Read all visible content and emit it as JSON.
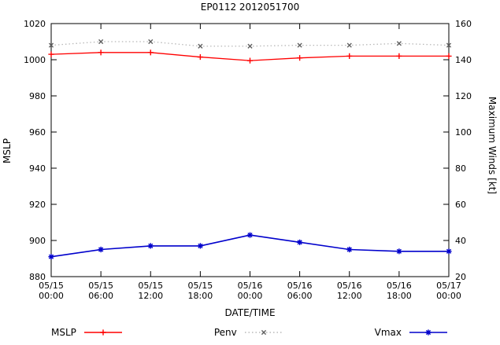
{
  "title": "EP0112 2012051700",
  "chart_data": {
    "type": "line",
    "title": "EP0112 2012051700",
    "xlabel": "DATE/TIME",
    "x_categories": [
      [
        "05/15",
        "00:00"
      ],
      [
        "05/15",
        "06:00"
      ],
      [
        "05/15",
        "12:00"
      ],
      [
        "05/15",
        "18:00"
      ],
      [
        "05/16",
        "00:00"
      ],
      [
        "05/16",
        "06:00"
      ],
      [
        "05/16",
        "12:00"
      ],
      [
        "05/16",
        "18:00"
      ],
      [
        "05/17",
        "00:00"
      ]
    ],
    "left_axis": {
      "label": "MSLP",
      "min": 880,
      "max": 1020,
      "step": 20
    },
    "right_axis": {
      "label": "Maximum Winds [kt]",
      "min": 20,
      "max": 160,
      "step": 20
    },
    "grid": false,
    "legend_position": "bottom",
    "series": [
      {
        "name": "MSLP",
        "axis": "left",
        "line_color": "#ff0000",
        "marker_color": "#ff0000",
        "marker": "plus",
        "line_style": "solid",
        "values": [
          1003,
          1004,
          1004,
          1001.5,
          999.5,
          1001,
          1002,
          1002,
          1002
        ]
      },
      {
        "name": "Penv",
        "axis": "left",
        "line_color": "#b8b8b8",
        "marker_color": "#606060",
        "marker": "cross",
        "line_style": "dotted",
        "values": [
          1008,
          1010,
          1010,
          1007.5,
          1007.5,
          1008,
          1008,
          1009,
          1008
        ]
      },
      {
        "name": "Vmax",
        "axis": "right",
        "line_color": "#0000cc",
        "marker_color": "#0000cc",
        "marker": "star",
        "line_style": "solid",
        "values": [
          31,
          35,
          37,
          37,
          43,
          39,
          35,
          34,
          34
        ]
      }
    ]
  }
}
